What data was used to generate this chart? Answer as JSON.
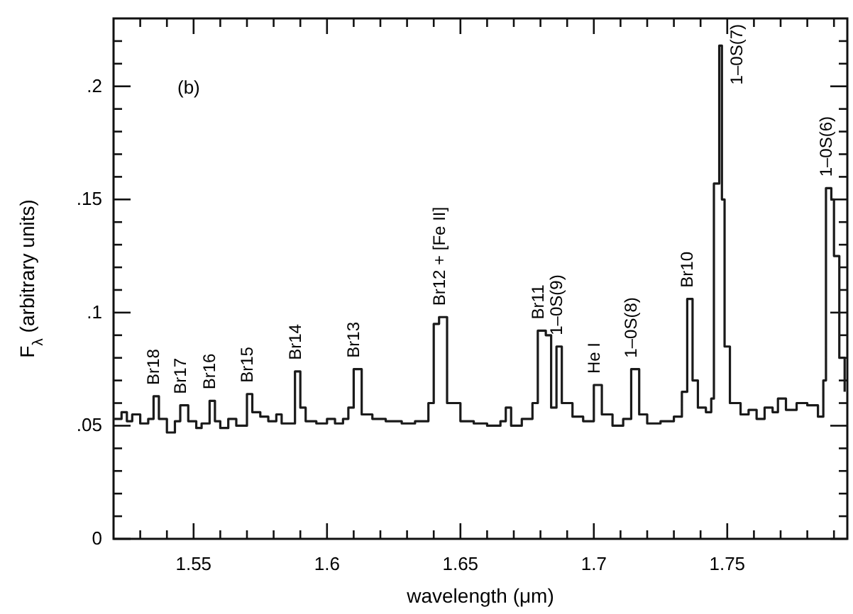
{
  "chart_data": {
    "type": "step",
    "xlabel": "wavelength (μm)",
    "ylabel": "F$_{λ}$ (arbitrary units)",
    "xlim": [
      1.52,
      1.795
    ],
    "ylim": [
      0,
      0.23
    ],
    "xticks": [
      {
        "value": 1.53,
        "label": null
      },
      {
        "value": 1.54,
        "label": null
      },
      1.55,
      {
        "value": 1.56,
        "label": null
      },
      {
        "value": 1.57,
        "label": null
      },
      {
        "value": 1.58,
        "label": null
      },
      {
        "value": 1.59,
        "label": null
      },
      1.6,
      {
        "value": 1.61,
        "label": null
      },
      {
        "value": 1.62,
        "label": null
      },
      {
        "value": 1.63,
        "label": null
      },
      {
        "value": 1.64,
        "label": null
      },
      1.65,
      {
        "value": 1.66,
        "label": null
      },
      {
        "value": 1.67,
        "label": null
      },
      {
        "value": 1.68,
        "label": null
      },
      {
        "value": 1.69,
        "label": null
      },
      1.7,
      {
        "value": 1.71,
        "label": null
      },
      {
        "value": 1.72,
        "label": null
      },
      {
        "value": 1.73,
        "label": null
      },
      {
        "value": 1.74,
        "label": null
      },
      1.75,
      {
        "value": 1.76,
        "label": null
      },
      {
        "value": 1.77,
        "label": null
      },
      {
        "value": 1.78,
        "label": null
      },
      {
        "value": 1.79,
        "label": null
      }
    ],
    "yticks": [
      0,
      {
        "value": 0.01,
        "label": null
      },
      {
        "value": 0.02,
        "label": null
      },
      {
        "value": 0.03,
        "label": null
      },
      {
        "value": 0.04,
        "label": null
      },
      {
        "value": 0.05,
        "label": ".05"
      },
      {
        "value": 0.06,
        "label": null
      },
      {
        "value": 0.07,
        "label": null
      },
      {
        "value": 0.08,
        "label": null
      },
      {
        "value": 0.09,
        "label": null
      },
      {
        "value": 0.1,
        "label": ".1"
      },
      {
        "value": 0.11,
        "label": null
      },
      {
        "value": 0.12,
        "label": null
      },
      {
        "value": 0.13,
        "label": null
      },
      {
        "value": 0.14,
        "label": null
      },
      {
        "value": 0.15,
        "label": ".15"
      },
      {
        "value": 0.16,
        "label": null
      },
      {
        "value": 0.17,
        "label": null
      },
      {
        "value": 0.18,
        "label": null
      },
      {
        "value": 0.19,
        "label": null
      },
      {
        "value": 0.2,
        "label": ".2"
      },
      {
        "value": 0.21,
        "label": null
      },
      {
        "value": 0.22,
        "label": null
      }
    ],
    "grid": false,
    "line_style": "solid",
    "marker": "none",
    "series": [
      {
        "color": "#1a1a1a",
        "x": [
          1.52,
          1.523,
          1.525,
          1.527,
          1.53,
          1.533,
          1.535,
          1.537,
          1.54,
          1.543,
          1.545,
          1.548,
          1.551,
          1.553,
          1.556,
          1.558,
          1.56,
          1.563,
          1.566,
          1.57,
          1.572,
          1.575,
          1.578,
          1.581,
          1.583,
          1.588,
          1.59,
          1.592,
          1.596,
          1.6,
          1.603,
          1.606,
          1.608,
          1.61,
          1.613,
          1.617,
          1.622,
          1.628,
          1.633,
          1.638,
          1.64,
          1.642,
          1.645,
          1.65,
          1.655,
          1.66,
          1.665,
          1.667,
          1.669,
          1.673,
          1.677,
          1.679,
          1.682,
          1.684,
          1.686,
          1.688,
          1.692,
          1.696,
          1.7,
          1.703,
          1.707,
          1.711,
          1.714,
          1.717,
          1.72,
          1.725,
          1.73,
          1.733,
          1.735,
          1.737,
          1.739,
          1.742,
          1.744,
          1.745,
          1.747,
          1.748,
          1.749,
          1.751,
          1.755,
          1.758,
          1.761,
          1.764,
          1.767,
          1.769,
          1.772,
          1.776,
          1.78,
          1.784,
          1.786,
          1.787,
          1.789,
          1.79,
          1.792,
          1.794
        ],
        "values": [
          0.053,
          0.056,
          0.052,
          0.055,
          0.051,
          0.053,
          0.063,
          0.053,
          0.047,
          0.052,
          0.059,
          0.052,
          0.049,
          0.051,
          0.061,
          0.052,
          0.049,
          0.053,
          0.05,
          0.064,
          0.056,
          0.054,
          0.052,
          0.055,
          0.051,
          0.074,
          0.058,
          0.052,
          0.051,
          0.053,
          0.051,
          0.053,
          0.058,
          0.075,
          0.055,
          0.053,
          0.052,
          0.051,
          0.052,
          0.06,
          0.095,
          0.098,
          0.06,
          0.052,
          0.051,
          0.05,
          0.052,
          0.058,
          0.05,
          0.053,
          0.06,
          0.092,
          0.09,
          0.058,
          0.085,
          0.06,
          0.054,
          0.052,
          0.068,
          0.055,
          0.05,
          0.053,
          0.075,
          0.055,
          0.051,
          0.052,
          0.054,
          0.065,
          0.106,
          0.07,
          0.058,
          0.056,
          0.062,
          0.157,
          0.218,
          0.15,
          0.085,
          0.06,
          0.055,
          0.057,
          0.053,
          0.058,
          0.056,
          0.062,
          0.057,
          0.06,
          0.059,
          0.054,
          0.07,
          0.155,
          0.15,
          0.125,
          0.08,
          0.065
        ]
      }
    ],
    "annotations": [
      "(b)",
      {
        "text": "Br18",
        "x": 1.535,
        "y": 0.063
      },
      {
        "text": "Br17",
        "x": 1.545,
        "y": 0.059
      },
      {
        "text": "Br16",
        "x": 1.556,
        "y": 0.061
      },
      {
        "text": "Br15",
        "x": 1.57,
        "y": 0.064
      },
      {
        "text": "Br14",
        "x": 1.588,
        "y": 0.074
      },
      {
        "text": "Br13",
        "x": 1.61,
        "y": 0.075
      },
      {
        "text": "Br12 + [Fe II]",
        "x": 1.642,
        "y": 0.098
      },
      {
        "text": "Br11",
        "x": 1.679,
        "y": 0.092
      },
      {
        "text": "1–0S(9)",
        "x": 1.686,
        "y": 0.085
      },
      {
        "text": "He I",
        "x": 1.7,
        "y": 0.068
      },
      {
        "text": "1–0S(8)",
        "x": 1.714,
        "y": 0.075
      },
      {
        "text": "Br10",
        "x": 1.735,
        "y": 0.106
      },
      {
        "text": "1–0S(7)",
        "x": 1.747,
        "y": 0.218
      },
      {
        "text": "1–0S(6)",
        "x": 1.787,
        "y": 0.155
      }
    ]
  }
}
